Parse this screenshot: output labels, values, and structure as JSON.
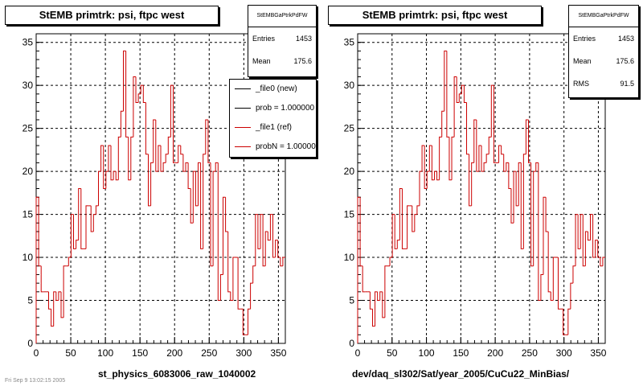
{
  "colors": {
    "hist": "#cc0000",
    "grid": "#000000",
    "axis": "#000000",
    "legend_new": "#000000",
    "legend_ref": "#cc0000"
  },
  "panels": [
    {
      "title": "StEMB primtrk: psi, ftpc west",
      "stats_title": "StEMBGaPtrkPdFW",
      "stats": [
        {
          "label": "Entries",
          "value": "1453"
        },
        {
          "label": "Mean",
          "value": "175.6"
        }
      ],
      "xlabel": "st_physics_6083006_raw_1040002",
      "legend": [
        {
          "label": "_file0 (new)",
          "color": "#000000"
        },
        {
          "label": "prob = 1.000000",
          "color": "#000000"
        },
        {
          "label": "_file1 (ref)",
          "color": "#cc0000"
        },
        {
          "label": "probN = 1.000000",
          "color": "#cc0000"
        }
      ]
    },
    {
      "title": "StEMB primtrk: psi, ftpc west",
      "stats_title": "StEMBGaPtrkPdFW",
      "stats": [
        {
          "label": "Entries",
          "value": "1453"
        },
        {
          "label": "Mean",
          "value": "175.6"
        },
        {
          "label": "RMS",
          "value": "91.5"
        }
      ],
      "xlabel": "dev/daq_sl302/Sat/year_2005/CuCu22_MinBias/"
    }
  ],
  "footer": "Fri Sep 9 13:02:15 2005",
  "chart_data": {
    "type": "histogram",
    "xlim": [
      0,
      360
    ],
    "ylim": [
      0,
      36
    ],
    "bin_width": 3.6,
    "x_ticks": [
      0,
      50,
      100,
      150,
      200,
      250,
      300,
      350
    ],
    "y_ticks": [
      0,
      5,
      10,
      15,
      20,
      25,
      30,
      35
    ],
    "grid": true,
    "values": [
      17,
      9,
      6,
      6,
      6,
      4,
      2,
      6,
      5,
      6,
      3,
      9,
      9,
      10,
      15,
      11,
      12,
      18,
      11,
      11,
      16,
      16,
      13,
      15,
      16,
      20,
      23,
      18,
      20,
      23,
      19,
      20,
      19,
      24,
      27,
      34,
      24,
      19,
      24,
      31,
      28,
      29,
      30,
      28,
      22,
      16,
      21,
      26,
      20,
      23,
      20,
      21,
      22,
      24,
      30,
      21,
      21,
      23,
      22,
      20,
      21,
      18,
      14,
      20,
      16,
      21,
      11,
      22,
      26,
      21,
      9,
      20,
      21,
      5,
      8,
      17,
      13,
      6,
      5,
      10,
      10,
      4,
      4,
      1,
      1,
      4,
      7,
      9,
      15,
      11,
      15,
      9,
      13,
      12,
      15,
      10,
      12,
      10,
      9,
      10
    ]
  }
}
